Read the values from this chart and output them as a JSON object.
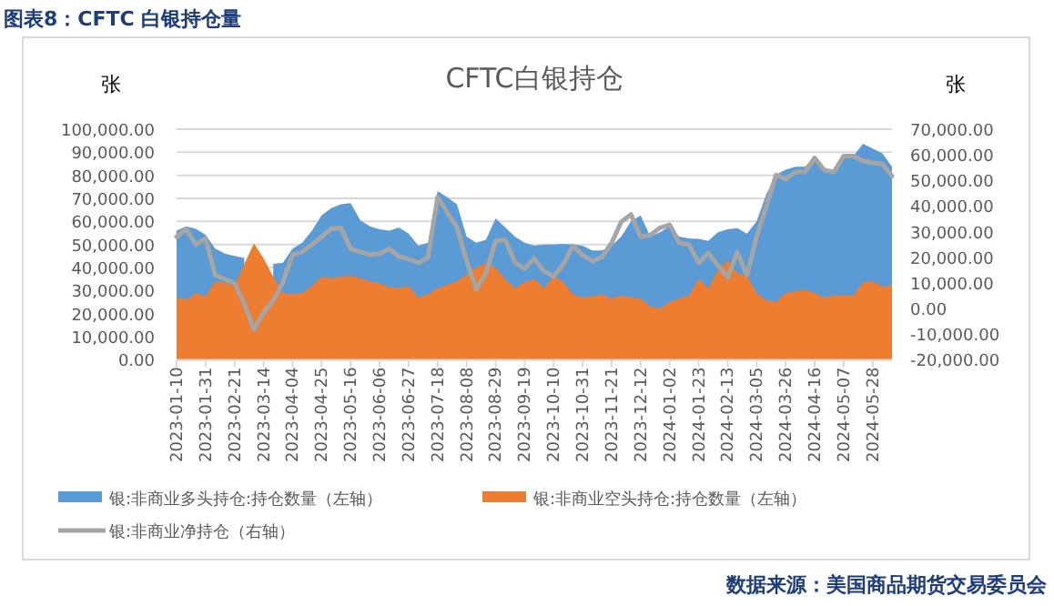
{
  "chart_data": {
    "type": "area",
    "title": "CFTC白银持仓",
    "ylabel": "张",
    "y2label": "张",
    "annotations": [
      "图表8：CFTC 白银持仓量",
      "数据来源：美国商品期货交易委员会"
    ],
    "categories": [
      "2023-01-10",
      null,
      null,
      "2023-01-31",
      null,
      null,
      "2023-02-21",
      null,
      null,
      "2023-03-14",
      null,
      null,
      "2023-04-04",
      null,
      null,
      "2023-04-25",
      null,
      null,
      "2023-05-16",
      null,
      null,
      "2023-06-06",
      null,
      null,
      "2023-06-27",
      null,
      null,
      "2023-07-18",
      null,
      null,
      "2023-08-08",
      null,
      null,
      "2023-08-29",
      null,
      null,
      "2023-09-19",
      null,
      null,
      "2023-10-10",
      null,
      null,
      "2023-10-31",
      null,
      null,
      "2023-11-21",
      null,
      null,
      "2023-12-12",
      null,
      null,
      "2024-01-02",
      null,
      null,
      "2024-01-23",
      null,
      null,
      "2024-02-13",
      null,
      null,
      "2024-03-05",
      null,
      null,
      "2024-03-26",
      null,
      null,
      "2024-04-16",
      null,
      null,
      "2024-05-07",
      null,
      null,
      "2024-05-28",
      null,
      null
    ],
    "series": [
      {
        "name": "银:非商业多头持仓:持仓数量（左轴）",
        "color": "#5b9bd5",
        "values": [
          56000,
          57900,
          56800,
          54200,
          48200,
          46000,
          45000,
          44200,
          null,
          null,
          41600,
          42100,
          48200,
          50800,
          56000,
          62600,
          65800,
          67400,
          67900,
          60500,
          57900,
          56600,
          56000,
          57400,
          54700,
          49500,
          50800,
          73200,
          70500,
          67400,
          53400,
          50800,
          52100,
          61300,
          57400,
          53400,
          50800,
          49500,
          50000,
          50000,
          50300,
          50000,
          49500,
          47400,
          47400,
          49500,
          53400,
          60000,
          62600,
          53400,
          55300,
          57900,
          53400,
          52600,
          52400,
          51600,
          55300,
          56600,
          57100,
          54700,
          60000,
          71800,
          80300,
          82400,
          83700,
          83700,
          87600,
          82400,
          81600,
          88400,
          88400,
          93700,
          91600,
          89500,
          83700
        ]
      },
      {
        "name": "银:非商业空头持仓:持仓数量（左轴）",
        "color": "#ed7d31",
        "values": [
          27000,
          26000,
          29000,
          27500,
          34000,
          33500,
          32000,
          41500,
          50500,
          44000,
          36000,
          29000,
          28500,
          29000,
          32000,
          36000,
          35500,
          36000,
          36500,
          35500,
          34000,
          33000,
          31500,
          31000,
          32000,
          27000,
          28500,
          31000,
          32500,
          34000,
          37000,
          40000,
          42000,
          40000,
          35000,
          31000,
          33700,
          35000,
          31000,
          36300,
          33700,
          28400,
          27000,
          27600,
          28400,
          26600,
          28000,
          27000,
          26600,
          23000,
          22400,
          25000,
          26600,
          28000,
          35000,
          31000,
          39000,
          43000,
          37600,
          36300,
          29000,
          25800,
          25000,
          29000,
          29700,
          30300,
          29000,
          27000,
          28000,
          28000,
          28000,
          33700,
          34000,
          31600,
          32400
        ]
      },
      {
        "name": "银:非商业净持仓（右轴）",
        "type": "line",
        "axis": "y2",
        "color": "#a5a5a5",
        "values": [
          28000,
          31100,
          25000,
          27400,
          13100,
          11500,
          9800,
          2000,
          -8200,
          -1500,
          3200,
          10300,
          21000,
          22100,
          25000,
          28000,
          31100,
          31600,
          23300,
          22100,
          21000,
          21400,
          23300,
          20300,
          19300,
          17900,
          19800,
          43500,
          37500,
          31600,
          18600,
          7500,
          13900,
          26400,
          26900,
          17900,
          15500,
          19700,
          14500,
          12600,
          17300,
          24400,
          20900,
          18500,
          20100,
          25600,
          33900,
          36700,
          28000,
          28700,
          31500,
          32700,
          25600,
          24900,
          17800,
          21600,
          16800,
          12100,
          22000,
          13000,
          28000,
          39800,
          52100,
          50500,
          53300,
          53300,
          58800,
          54000,
          53300,
          59500,
          59500,
          57600,
          56900,
          56400,
          51700
        ]
      }
    ],
    "ylim": [
      0,
      100000
    ],
    "yticks": [
      {
        "value": 0,
        "label": "0.00"
      },
      {
        "value": 10000,
        "label": "10,000.00"
      },
      {
        "value": 20000,
        "label": "20,000.00"
      },
      {
        "value": 30000,
        "label": "30,000.00"
      },
      {
        "value": 40000,
        "label": "40,000.00"
      },
      {
        "value": 50000,
        "label": "50,000.00"
      },
      {
        "value": 60000,
        "label": "60,000.00"
      },
      {
        "value": 70000,
        "label": "70,000.00"
      },
      {
        "value": 80000,
        "label": "80,000.00"
      },
      {
        "value": 90000,
        "label": "90,000.00"
      },
      {
        "value": 100000,
        "label": "100,000.00"
      }
    ],
    "y2lim": [
      -20000,
      70000
    ],
    "y2ticks": [
      {
        "value": -20000,
        "label": "-20,000.00"
      },
      {
        "value": -10000,
        "label": "-10,000.00"
      },
      {
        "value": 0,
        "label": "0.00"
      },
      {
        "value": 10000,
        "label": "10,000.00"
      },
      {
        "value": 20000,
        "label": "20,000.00"
      },
      {
        "value": 30000,
        "label": "30,000.00"
      },
      {
        "value": 40000,
        "label": "40,000.00"
      },
      {
        "value": 50000,
        "label": "50,000.00"
      },
      {
        "value": 60000,
        "label": "60,000.00"
      },
      {
        "value": 70000,
        "label": "70,000.00"
      }
    ],
    "grid": "y",
    "legend": "bottom"
  }
}
